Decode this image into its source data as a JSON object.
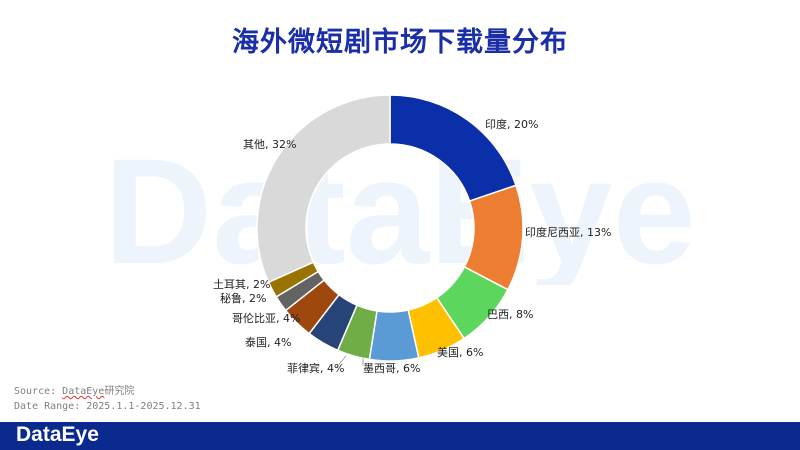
{
  "watermark_text": "DataEye",
  "source_line": {
    "prefix": "Source: ",
    "brand": "DataEye",
    "suffix": "研究院"
  },
  "date_range": "Date Range: 2025.1.1-2025.12.31",
  "footer_logo": "DataEye",
  "colors": {
    "title": "#1a2ea8",
    "footer_bar": "#0a2a8f",
    "watermark": "#eef4fb"
  },
  "chart_data": {
    "type": "pie",
    "title": "海外微短剧市场下载量分布",
    "donut": true,
    "slices": [
      {
        "label": "印度",
        "value": 20,
        "display": "印度, 20%",
        "color": "#0a2fa8"
      },
      {
        "label": "印度尼西亚",
        "value": 13,
        "display": "印度尼西亚, 13%",
        "color": "#ed7d31"
      },
      {
        "label": "巴西",
        "value": 8,
        "display": "巴西, 8%",
        "color": "#5cd65c"
      },
      {
        "label": "美国",
        "value": 6,
        "display": "美国, 6%",
        "color": "#ffc000"
      },
      {
        "label": "墨西哥",
        "value": 6,
        "display": "墨西哥, 6%",
        "color": "#5b9bd5"
      },
      {
        "label": "菲律宾",
        "value": 4,
        "display": "菲律宾, 4%",
        "color": "#70ad47"
      },
      {
        "label": "泰国",
        "value": 4,
        "display": "泰国, 4%",
        "color": "#264478"
      },
      {
        "label": "哥伦比亚",
        "value": 4,
        "display": "哥伦比亚, 4%",
        "color": "#9e480e"
      },
      {
        "label": "秘鲁",
        "value": 2,
        "display": "秘鲁, 2%",
        "color": "#636363"
      },
      {
        "label": "土耳其",
        "value": 2,
        "display": "土耳其, 2%",
        "color": "#997300"
      },
      {
        "label": "其他",
        "value": 32,
        "display": "其他, 32%",
        "color": "#d9d9d9"
      }
    ]
  }
}
